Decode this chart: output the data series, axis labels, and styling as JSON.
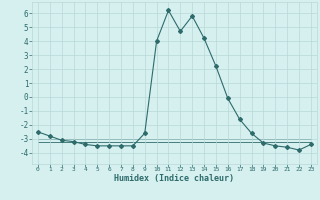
{
  "x": [
    0,
    1,
    2,
    3,
    4,
    5,
    6,
    7,
    8,
    9,
    10,
    11,
    12,
    13,
    14,
    15,
    16,
    17,
    18,
    19,
    20,
    21,
    22,
    23
  ],
  "y_main": [
    -2.5,
    -2.8,
    -3.1,
    -3.2,
    -3.4,
    -3.5,
    -3.5,
    -3.5,
    -3.5,
    -2.6,
    4.0,
    6.2,
    4.7,
    5.8,
    4.2,
    2.2,
    -0.1,
    -1.6,
    -2.6,
    -3.3,
    -3.5,
    -3.6,
    -3.8,
    -3.4
  ],
  "y_flat1": [
    -3.0,
    -3.0,
    -3.0,
    -3.0,
    -3.0,
    -3.0,
    -3.0,
    -3.0,
    -3.0,
    -3.0,
    -3.0,
    -3.0,
    -3.0,
    -3.0,
    -3.0,
    -3.0,
    -3.0,
    -3.0,
    -3.0,
    -3.0,
    -3.0,
    -3.0,
    -3.0,
    -3.0
  ],
  "y_flat2": [
    -3.2,
    -3.2,
    -3.2,
    -3.2,
    -3.2,
    -3.2,
    -3.2,
    -3.2,
    -3.2,
    -3.2,
    -3.2,
    -3.2,
    -3.2,
    -3.2,
    -3.2,
    -3.2,
    -3.2,
    -3.2,
    -3.2,
    -3.2,
    -3.2,
    -3.2,
    -3.2,
    -3.2
  ],
  "line_color": "#2e6b6b",
  "bg_color": "#d6f0f0",
  "grid_color": "#b8d8d8",
  "xlabel": "Humidex (Indice chaleur)",
  "ylim": [
    -4.8,
    6.8
  ],
  "xlim": [
    -0.5,
    23.5
  ],
  "yticks": [
    -4,
    -3,
    -2,
    -1,
    0,
    1,
    2,
    3,
    4,
    5,
    6
  ],
  "xticks": [
    0,
    1,
    2,
    3,
    4,
    5,
    6,
    7,
    8,
    9,
    10,
    11,
    12,
    13,
    14,
    15,
    16,
    17,
    18,
    19,
    20,
    21,
    22,
    23
  ],
  "xtick_labels": [
    "0",
    "1",
    "2",
    "3",
    "4",
    "5",
    "6",
    "7",
    "8",
    "9",
    "10",
    "11",
    "12",
    "13",
    "14",
    "15",
    "16",
    "17",
    "18",
    "19",
    "20",
    "21",
    "22",
    "23"
  ],
  "marker": "D",
  "markersize": 2.0,
  "linewidth": 0.8
}
